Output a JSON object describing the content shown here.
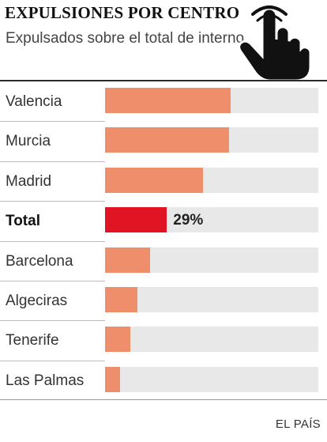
{
  "header": {
    "title": "EXPULSIONES POR CENTRO",
    "subtitle": "Expulsados sobre el total de interno"
  },
  "source": "EL PAÍS",
  "colors": {
    "bar": "#ee8e6b",
    "highlight": "#e01422",
    "track": "#e8e8e8"
  },
  "overlay": {
    "icon": "pointer-hand-icon"
  },
  "chart_data": {
    "type": "bar",
    "orientation": "horizontal",
    "title": "EXPULSIONES POR CENTRO",
    "subtitle": "Expulsados sobre el total de interno",
    "xlim": [
      0,
      100
    ],
    "categories": [
      "Valencia",
      "Murcia",
      "Madrid",
      "Total",
      "Barcelona",
      "Algeciras",
      "Tenerife",
      "Las Palmas"
    ],
    "values": [
      59,
      58,
      46,
      29,
      21,
      15,
      12,
      7
    ],
    "highlight": "Total",
    "data_labels": [
      "",
      "",
      "",
      "29%",
      "",
      "",
      "",
      ""
    ],
    "grid": false,
    "legend": "none"
  }
}
